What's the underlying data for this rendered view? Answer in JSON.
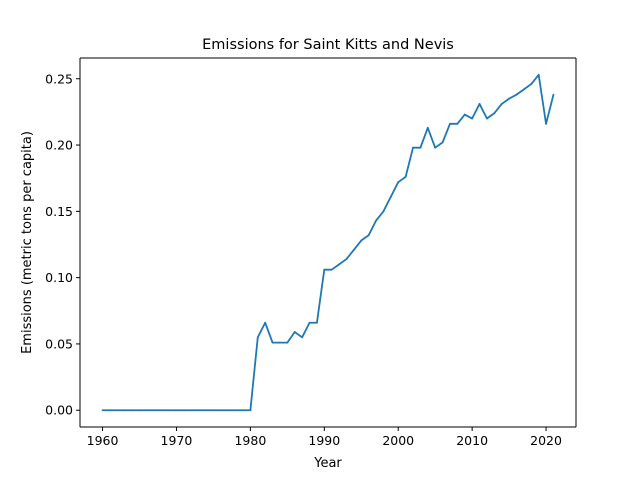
{
  "chart_data": {
    "type": "line",
    "title": "Emissions for Saint Kitts and Nevis",
    "xlabel": "Year",
    "ylabel": "Emissions (metric tons per capita)",
    "xlim": [
      1956.95,
      2024.05
    ],
    "ylim": [
      -0.01265,
      0.26565
    ],
    "x_ticks": [
      1960,
      1970,
      1980,
      1990,
      2000,
      2010,
      2020
    ],
    "y_ticks": [
      0.0,
      0.05,
      0.1,
      0.15,
      0.2,
      0.25
    ],
    "x_tick_labels": [
      "1960",
      "1970",
      "1980",
      "1990",
      "2000",
      "2010",
      "2020"
    ],
    "y_tick_labels": [
      "0.00",
      "0.05",
      "0.10",
      "0.15",
      "0.20",
      "0.25"
    ],
    "grid": false,
    "series": [
      {
        "color": "#1f77b4",
        "x": [
          1960,
          1961,
          1962,
          1963,
          1964,
          1965,
          1966,
          1967,
          1968,
          1969,
          1970,
          1971,
          1972,
          1973,
          1974,
          1975,
          1976,
          1977,
          1978,
          1979,
          1980,
          1981,
          1982,
          1983,
          1984,
          1985,
          1986,
          1987,
          1988,
          1989,
          1990,
          1991,
          1992,
          1993,
          1994,
          1995,
          1996,
          1997,
          1998,
          1999,
          2000,
          2001,
          2002,
          2003,
          2004,
          2005,
          2006,
          2007,
          2008,
          2009,
          2010,
          2011,
          2012,
          2013,
          2014,
          2015,
          2016,
          2017,
          2018,
          2019,
          2020,
          2021
        ],
        "values": [
          0,
          0,
          0,
          0,
          0,
          0,
          0,
          0,
          0,
          0,
          0,
          0,
          0,
          0,
          0,
          0,
          0,
          0,
          0,
          0,
          0,
          0.055,
          0.066,
          0.051,
          0.051,
          0.051,
          0.059,
          0.055,
          0.066,
          0.066,
          0.106,
          0.106,
          0.11,
          0.114,
          0.121,
          0.128,
          0.132,
          0.143,
          0.15,
          0.161,
          0.172,
          0.176,
          0.198,
          0.198,
          0.213,
          0.198,
          0.202,
          0.216,
          0.216,
          0.223,
          0.22,
          0.231,
          0.22,
          0.224,
          0.231,
          0.235,
          0.238,
          0.242,
          0.246,
          0.253,
          0.216,
          0.238
        ]
      }
    ]
  }
}
